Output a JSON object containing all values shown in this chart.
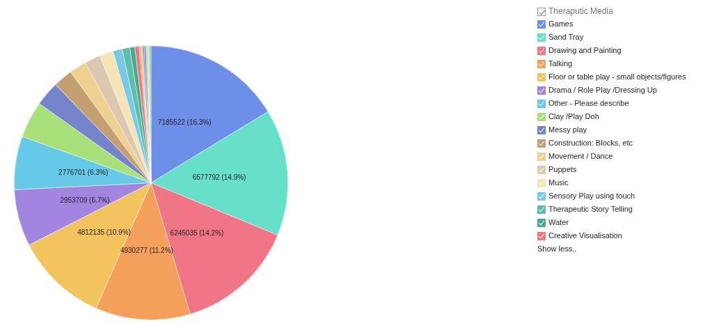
{
  "chart_data": {
    "type": "pie",
    "legend_title": "Theraputic Media",
    "legend": "right",
    "annotations": [
      "Show less.."
    ],
    "categories": [
      "Games",
      "Sand Tray",
      "Drawing and Painting",
      "Talking",
      "Floor or table play - small objects/figures",
      "Drama / Role Play /Dressing Up",
      "Other - Please describe",
      "Clay /Play Doh",
      "Messy play",
      "Construction: Blocks, etc",
      "Movement / Dance",
      "Puppets",
      "Music",
      "Sensory Play using touch",
      "Therapeutic Story Telling",
      "Water",
      "Creative Visualisation",
      null,
      null,
      null,
      null,
      null,
      null,
      null
    ],
    "values": [
      7185522,
      6577792,
      6245035,
      4930277,
      4812135,
      2953709,
      2776701,
      1900000,
      1280000,
      1010000,
      880000,
      840000,
      710000,
      480000,
      400000,
      260000,
      220000,
      88000,
      88000,
      88000,
      88000,
      88000,
      88000,
      88000
    ],
    "colors": [
      "#6d8fe8",
      "#66e0c8",
      "#f07585",
      "#f5a05a",
      "#f2c45e",
      "#a285df",
      "#66c9e8",
      "#a8e07a",
      "#7585cc",
      "#c4a070",
      "#efd08e",
      "#dcc8b0",
      "#f5e4b5",
      "#78c8e8",
      "#5cc0a8",
      "#4aa890",
      "#ec7a7a",
      "#f0a070",
      "#f2c870",
      "#9080d8",
      "#6090d8",
      "#a0d890",
      "#f5d8a0",
      "#70c8b8"
    ],
    "value_labels": [
      "7185522 (16.3%)",
      "6577792 (14.9%)",
      "6245035 (14.2%)",
      "4930277 (11.2%)",
      "4812135 (10.9%)",
      "2953709 (6.7%)",
      "2776701 (6.3%)",
      null,
      null,
      null,
      null,
      null,
      null,
      null,
      null,
      null,
      null,
      null,
      null,
      null,
      null,
      null,
      null,
      null
    ]
  }
}
